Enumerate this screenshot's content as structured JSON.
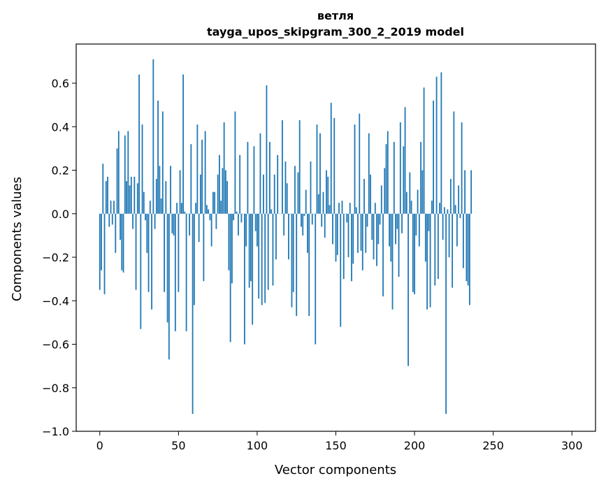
{
  "chart_data": {
    "type": "bar",
    "title": "ветля",
    "subtitle": "tayga_upos_skipgram_300_2_2019 model",
    "xlabel": "Vector components",
    "ylabel": "Components values",
    "xlim": [
      -15,
      315
    ],
    "ylim": [
      -1.0,
      0.78
    ],
    "xticks": [
      0,
      50,
      100,
      150,
      200,
      250,
      300
    ],
    "xtick_labels": [
      "0",
      "50",
      "100",
      "150",
      "200",
      "250",
      "300"
    ],
    "yticks": [
      -1.0,
      -0.8,
      -0.6,
      -0.4,
      -0.2,
      0.0,
      0.2,
      0.4,
      0.6
    ],
    "ytick_labels": [
      "−1.0",
      "−0.8",
      "−0.6",
      "−0.4",
      "−0.2",
      "0.0",
      "0.2",
      "0.4",
      "0.6"
    ],
    "grid": false,
    "bar_color": "#1f77b4",
    "values": [
      -0.35,
      -0.26,
      0.23,
      -0.37,
      0.15,
      0.17,
      -0.06,
      0.06,
      -0.05,
      0.06,
      -0.18,
      0.3,
      0.38,
      -0.12,
      -0.26,
      -0.27,
      0.36,
      0.15,
      0.38,
      0.13,
      0.17,
      -0.07,
      0.17,
      -0.35,
      0.14,
      0.64,
      -0.53,
      0.41,
      0.1,
      -0.03,
      -0.18,
      -0.36,
      0.06,
      -0.44,
      0.71,
      -0.07,
      0.16,
      0.52,
      0.22,
      0.07,
      0.47,
      -0.36,
      0.15,
      -0.5,
      -0.67,
      0.22,
      -0.09,
      -0.1,
      -0.54,
      0.05,
      -0.36,
      0.2,
      0.05,
      0.64,
      0.01,
      -0.54,
      0.0,
      -0.1,
      0.32,
      -0.92,
      -0.42,
      0.05,
      0.41,
      -0.13,
      0.18,
      0.34,
      -0.31,
      0.38,
      0.04,
      0.02,
      -0.03,
      -0.15,
      0.1,
      0.1,
      -0.07,
      0.18,
      0.27,
      0.06,
      0.21,
      0.42,
      0.2,
      0.15,
      -0.26,
      -0.59,
      -0.32,
      -0.03,
      0.47,
      0.01,
      -0.1,
      0.27,
      -0.04,
      0.0,
      -0.6,
      -0.15,
      0.33,
      -0.34,
      -0.31,
      -0.51,
      0.31,
      -0.08,
      -0.15,
      -0.39,
      0.37,
      -0.42,
      0.18,
      -0.41,
      0.59,
      -0.35,
      0.33,
      0.02,
      -0.33,
      0.18,
      -0.21,
      0.27,
      0.0,
      0.0,
      0.43,
      -0.1,
      0.24,
      0.14,
      -0.21,
      0.0,
      -0.43,
      -0.36,
      0.22,
      -0.47,
      0.19,
      0.43,
      -0.06,
      -0.1,
      -0.01,
      0.11,
      -0.18,
      -0.47,
      0.24,
      -0.05,
      0.0,
      -0.6,
      0.41,
      0.09,
      0.37,
      -0.06,
      0.1,
      -0.11,
      0.2,
      0.17,
      0.04,
      0.51,
      -0.14,
      0.44,
      -0.22,
      -0.19,
      0.05,
      -0.52,
      0.06,
      -0.3,
      0.0,
      -0.04,
      -0.2,
      0.05,
      -0.31,
      -0.23,
      0.41,
      0.03,
      -0.18,
      0.46,
      -0.17,
      -0.26,
      0.16,
      -0.18,
      -0.06,
      0.37,
      0.18,
      -0.12,
      -0.21,
      0.05,
      -0.24,
      -0.14,
      -0.05,
      0.13,
      -0.38,
      0.21,
      0.32,
      0.38,
      -0.15,
      -0.22,
      -0.44,
      0.33,
      -0.14,
      -0.07,
      -0.29,
      0.42,
      -0.09,
      0.31,
      0.49,
      0.1,
      -0.7,
      0.19,
      0.06,
      -0.36,
      -0.37,
      -0.1,
      0.11,
      -0.15,
      0.33,
      0.2,
      0.58,
      -0.22,
      -0.44,
      -0.08,
      -0.43,
      0.06,
      0.52,
      -0.33,
      0.63,
      -0.3,
      0.05,
      0.65,
      -0.12,
      0.03,
      -0.92,
      0.02,
      -0.2,
      0.16,
      -0.34,
      0.47,
      0.04,
      -0.15,
      0.13,
      -0.02,
      0.42,
      -0.25,
      0.2,
      -0.31,
      -0.33,
      -0.42,
      0.2
    ]
  }
}
